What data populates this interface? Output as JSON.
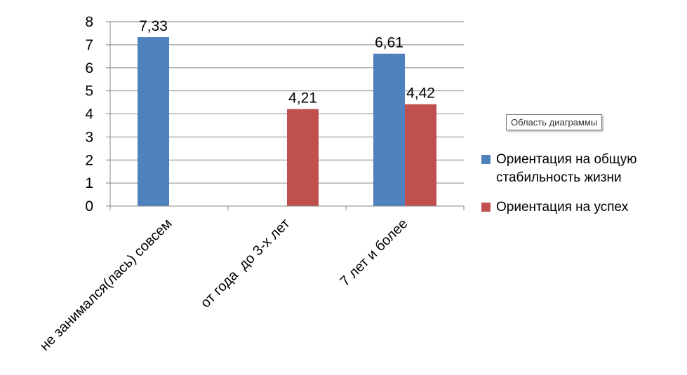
{
  "chart_data": {
    "type": "bar",
    "categories": [
      "не занимался(лась) совсем",
      "от года  до 3-х лет",
      "7 лет и более"
    ],
    "series": [
      {
        "name": "Ориентация на общую стабильность жизни",
        "color": "#4F81BD",
        "values": [
          7.33,
          null,
          6.61
        ],
        "labels": [
          "7,33",
          "",
          "6,61"
        ]
      },
      {
        "name": "Ориентация на успех",
        "color": "#C0504D",
        "values": [
          null,
          4.21,
          4.42
        ],
        "labels": [
          "",
          "4,21",
          "4,42"
        ]
      }
    ],
    "ylim": [
      0,
      8
    ],
    "yticks": [
      "0",
      "1",
      "2",
      "3",
      "4",
      "5",
      "6",
      "7",
      "8"
    ],
    "grid": true,
    "legend": "right"
  },
  "tooltip": {
    "text": "Область диаграммы"
  }
}
